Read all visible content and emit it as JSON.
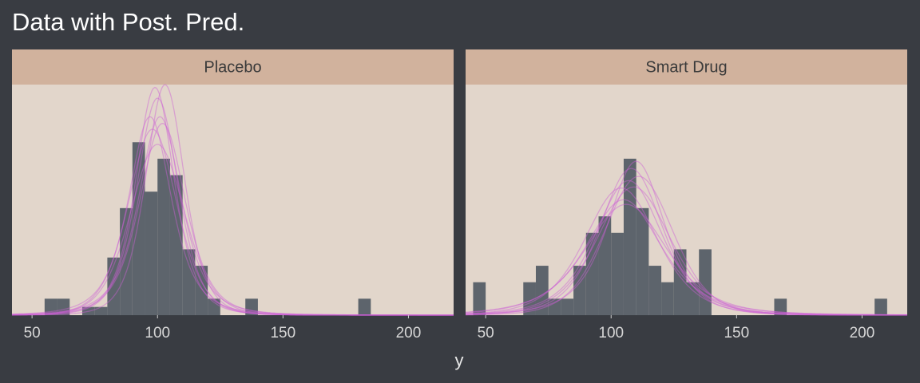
{
  "title": "Data with Post. Pred.",
  "xlabel": "y",
  "chart_data": [
    {
      "type": "histogram",
      "title": "Placebo",
      "bins": [
        55,
        60,
        65,
        70,
        75,
        80,
        85,
        90,
        95,
        100,
        105,
        110,
        115,
        120,
        125,
        130,
        135,
        140,
        145,
        150,
        155,
        160,
        165,
        170,
        175,
        180,
        185
      ],
      "values": [
        2,
        2,
        0,
        1,
        1,
        7,
        13,
        21,
        15,
        19,
        17,
        8,
        6,
        2,
        0,
        0,
        2,
        0,
        0,
        0,
        0,
        0,
        0,
        0,
        0,
        2
      ],
      "color": "#5d646c",
      "curve_color": "#cc5fd4",
      "curves": [
        {
          "mu": 99,
          "sigma": 8,
          "nu": 4
        },
        {
          "mu": 101,
          "sigma": 9,
          "nu": 3
        },
        {
          "mu": 98,
          "sigma": 10,
          "nu": 6
        },
        {
          "mu": 100,
          "sigma": 8.5,
          "nu": 5
        },
        {
          "mu": 102,
          "sigma": 9.5,
          "nu": 4
        },
        {
          "mu": 97,
          "sigma": 9,
          "nu": 3
        },
        {
          "mu": 100,
          "sigma": 11,
          "nu": 8
        },
        {
          "mu": 103,
          "sigma": 8,
          "nu": 5
        }
      ],
      "xlim": [
        42,
        218
      ],
      "xticks": [
        50,
        100,
        150,
        200
      ],
      "ylim": [
        0,
        28
      ]
    },
    {
      "type": "histogram",
      "title": "Smart Drug",
      "bins": [
        45,
        50,
        55,
        60,
        65,
        70,
        75,
        80,
        85,
        90,
        95,
        100,
        105,
        110,
        115,
        120,
        125,
        130,
        135,
        140,
        145,
        150,
        155,
        160,
        165,
        170,
        175,
        180,
        185,
        190,
        195,
        200,
        205,
        210
      ],
      "values": [
        4,
        0,
        0,
        0,
        4,
        6,
        2,
        2,
        6,
        10,
        12,
        10,
        19,
        13,
        6,
        4,
        8,
        4,
        8,
        0,
        0,
        0,
        0,
        0,
        2,
        0,
        0,
        0,
        0,
        0,
        0,
        0,
        2
      ],
      "color": "#5d646c",
      "curve_color": "#cc5fd4",
      "curves": [
        {
          "mu": 107,
          "sigma": 14,
          "nu": 4
        },
        {
          "mu": 109,
          "sigma": 15,
          "nu": 6
        },
        {
          "mu": 105,
          "sigma": 16,
          "nu": 3
        },
        {
          "mu": 108,
          "sigma": 13,
          "nu": 5
        },
        {
          "mu": 111,
          "sigma": 14,
          "nu": 8
        },
        {
          "mu": 106,
          "sigma": 17,
          "nu": 4
        },
        {
          "mu": 110,
          "sigma": 12,
          "nu": 3
        },
        {
          "mu": 104,
          "sigma": 15,
          "nu": 5
        }
      ],
      "xlim": [
        42,
        218
      ],
      "xticks": [
        50,
        100,
        150,
        200
      ],
      "ylim": [
        0,
        28
      ]
    }
  ]
}
